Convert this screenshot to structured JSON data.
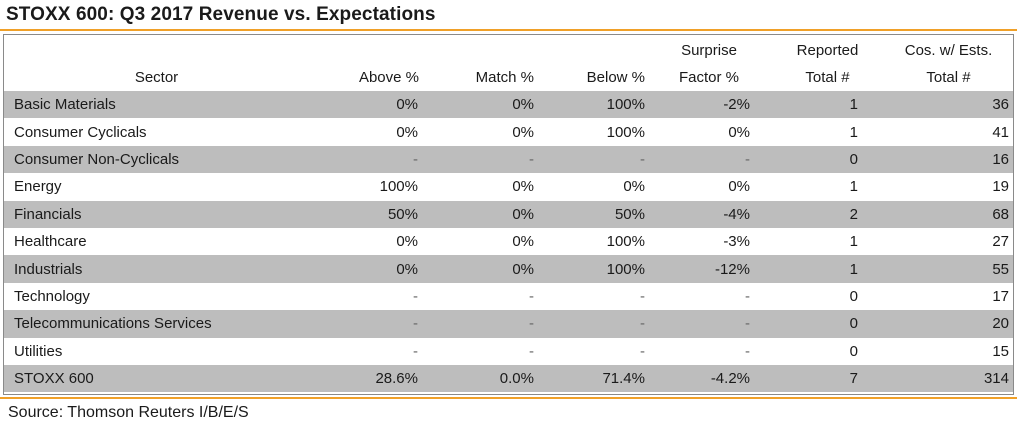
{
  "title": "STOXX 600: Q3 2017 Revenue vs. Expectations",
  "colors": {
    "accent_rule": "#f0a028",
    "shade": "#bdbdbd",
    "border": "#8a8a8a"
  },
  "headers": {
    "sector": "Sector",
    "above": "Above %",
    "match": "Match %",
    "below": "Below %",
    "surprise_line1": "Surprise",
    "surprise_line2": "Factor %",
    "reported_line1": "Reported",
    "reported_line2": "Total #",
    "cos_line1": "Cos. w/ Ests.",
    "cos_line2": "Total #"
  },
  "rows": [
    {
      "sector": "Basic Materials",
      "above": "0%",
      "match": "0%",
      "below": "100%",
      "surprise": "-2%",
      "reported": "1",
      "cos": "36"
    },
    {
      "sector": "Consumer Cyclicals",
      "above": "0%",
      "match": "0%",
      "below": "100%",
      "surprise": "0%",
      "reported": "1",
      "cos": "41"
    },
    {
      "sector": "Consumer Non-Cyclicals",
      "above": "-",
      "match": "-",
      "below": "-",
      "surprise": "-",
      "reported": "0",
      "cos": "16"
    },
    {
      "sector": "Energy",
      "above": "100%",
      "match": "0%",
      "below": "0%",
      "surprise": "0%",
      "reported": "1",
      "cos": "19"
    },
    {
      "sector": "Financials",
      "above": "50%",
      "match": "0%",
      "below": "50%",
      "surprise": "-4%",
      "reported": "2",
      "cos": "68"
    },
    {
      "sector": "Healthcare",
      "above": "0%",
      "match": "0%",
      "below": "100%",
      "surprise": "-3%",
      "reported": "1",
      "cos": "27"
    },
    {
      "sector": "Industrials",
      "above": "0%",
      "match": "0%",
      "below": "100%",
      "surprise": "-12%",
      "reported": "1",
      "cos": "55"
    },
    {
      "sector": "Technology",
      "above": "-",
      "match": "-",
      "below": "-",
      "surprise": "-",
      "reported": "0",
      "cos": "17"
    },
    {
      "sector": "Telecommunications Services",
      "above": "-",
      "match": "-",
      "below": "-",
      "surprise": "-",
      "reported": "0",
      "cos": "20"
    },
    {
      "sector": "Utilities",
      "above": "-",
      "match": "-",
      "below": "-",
      "surprise": "-",
      "reported": "0",
      "cos": "15"
    }
  ],
  "total": {
    "sector": "STOXX 600",
    "above": "28.6%",
    "match": "0.0%",
    "below": "71.4%",
    "surprise": "-4.2%",
    "reported": "7",
    "cos": "314"
  },
  "source": "Source: Thomson Reuters I/B/E/S"
}
